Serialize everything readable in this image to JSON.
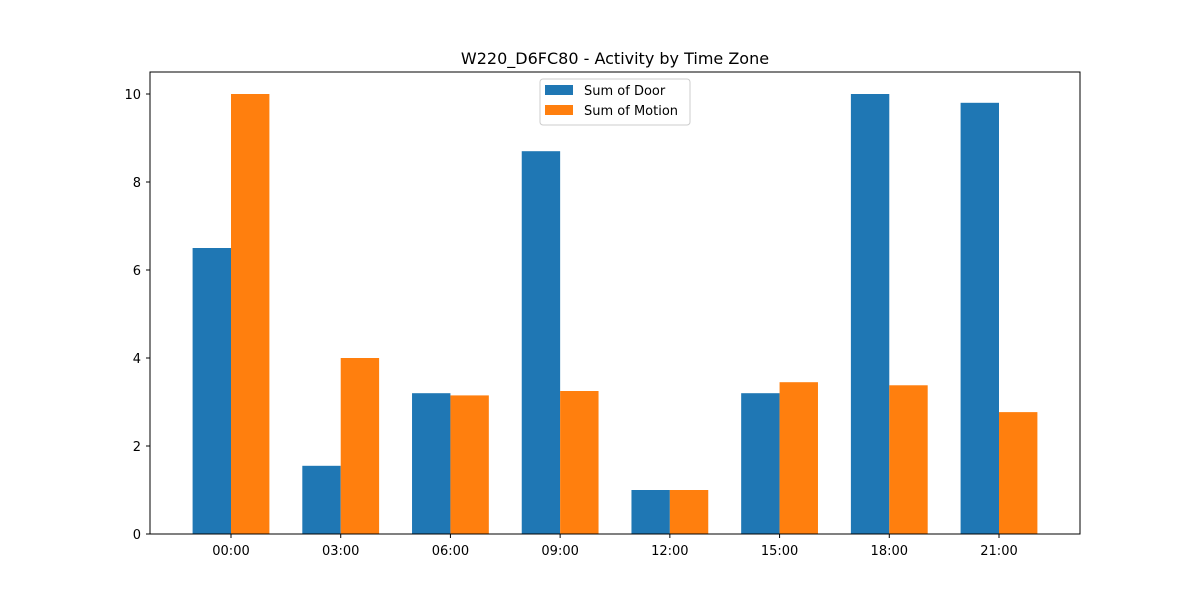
{
  "chart_data": {
    "type": "bar",
    "title": "W220_D6FC80 - Activity by Time Zone",
    "xlabel": "",
    "ylabel": "",
    "categories": [
      "00:00",
      "03:00",
      "06:00",
      "09:00",
      "12:00",
      "15:00",
      "18:00",
      "21:00"
    ],
    "series": [
      {
        "name": "Sum of Door",
        "color": "#1f77b4",
        "values": [
          6.5,
          1.55,
          3.2,
          8.7,
          1.0,
          3.2,
          10.0,
          9.8
        ]
      },
      {
        "name": "Sum of Motion",
        "color": "#ff7f0e",
        "values": [
          10.0,
          4.0,
          3.15,
          3.25,
          1.0,
          3.45,
          3.38,
          2.77
        ]
      }
    ],
    "ylim": [
      0,
      10.5
    ],
    "yticks": [
      0,
      2,
      4,
      6,
      8,
      10
    ],
    "grid": false,
    "legend_position": "top-center"
  }
}
